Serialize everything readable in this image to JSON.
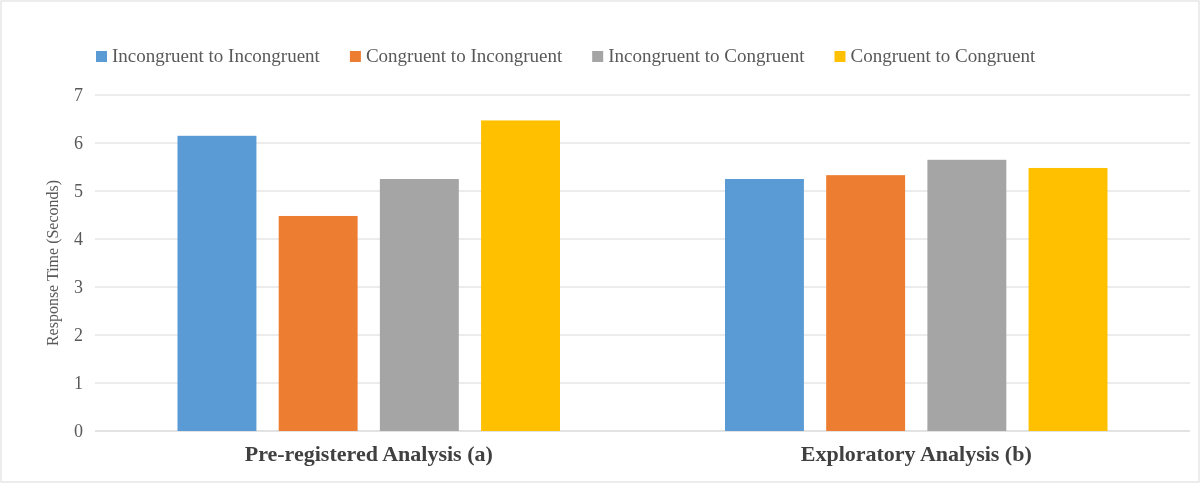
{
  "chart_data": {
    "type": "bar",
    "ylabel": "Response Time (Seconds)",
    "categories": [
      "Pre-registered Analysis (a)",
      "Exploratory Analysis (b)"
    ],
    "series": [
      {
        "name": "Incongruent to Incongruent",
        "color": "#5b9bd5",
        "values": [
          6.15,
          5.25
        ]
      },
      {
        "name": "Congruent to Incongruent",
        "color": "#ed7d31",
        "values": [
          4.48,
          5.33
        ]
      },
      {
        "name": "Incongruent to Congruent",
        "color": "#a5a5a5",
        "values": [
          5.25,
          5.65
        ]
      },
      {
        "name": "Congruent to Congruent",
        "color": "#ffc000",
        "values": [
          6.47,
          5.48
        ]
      }
    ],
    "ylim": [
      0,
      7
    ],
    "yticks": [
      0,
      1,
      2,
      3,
      4,
      5,
      6,
      7
    ],
    "grid": "y",
    "legend": "top"
  }
}
